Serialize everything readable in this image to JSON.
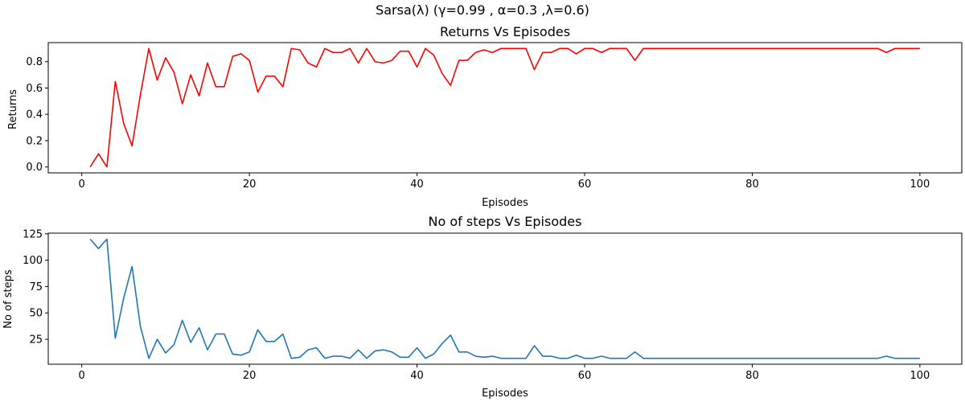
{
  "suptitle": "Sarsa(λ) (γ=0.99 , α=0.3 ,λ=0.6)",
  "colors": {
    "returns_line": "#ff0000",
    "steps_line": "#1f77b4"
  },
  "chart_data": [
    {
      "type": "line",
      "title": "Returns Vs Episodes",
      "xlabel": "Episodes",
      "ylabel": "Returns",
      "xlim": [
        -4,
        105
      ],
      "ylim": [
        -0.045,
        0.945
      ],
      "xticks": [
        0,
        20,
        40,
        60,
        80,
        100
      ],
      "yticks": [
        0.0,
        0.2,
        0.4,
        0.6,
        0.8
      ],
      "xtick_labels": [
        "0",
        "20",
        "40",
        "60",
        "80",
        "100"
      ],
      "ytick_labels": [
        "0.0",
        "0.2",
        "0.4",
        "0.6",
        "0.8"
      ],
      "grid": false,
      "series": [
        {
          "color": "#ff0000",
          "x": [
            1,
            2,
            3,
            4,
            5,
            6,
            7,
            8,
            9,
            10,
            11,
            12,
            13,
            14,
            15,
            16,
            17,
            18,
            19,
            20,
            21,
            22,
            23,
            24,
            25,
            26,
            27,
            28,
            29,
            30,
            31,
            32,
            33,
            34,
            35,
            36,
            37,
            38,
            39,
            40,
            41,
            42,
            43,
            44,
            45,
            46,
            47,
            48,
            49,
            50,
            51,
            52,
            53,
            54,
            55,
            56,
            57,
            58,
            59,
            60,
            61,
            62,
            63,
            64,
            65,
            66,
            67,
            68,
            69,
            70,
            71,
            72,
            73,
            74,
            75,
            76,
            77,
            78,
            79,
            80,
            81,
            82,
            83,
            84,
            85,
            86,
            87,
            88,
            89,
            90,
            91,
            92,
            93,
            94,
            95,
            96,
            97,
            98,
            99,
            100
          ],
          "values": [
            0.0,
            0.1,
            0.0,
            0.65,
            0.33,
            0.16,
            0.55,
            0.9,
            0.66,
            0.83,
            0.72,
            0.48,
            0.7,
            0.54,
            0.79,
            0.61,
            0.61,
            0.84,
            0.86,
            0.81,
            0.57,
            0.69,
            0.69,
            0.61,
            0.9,
            0.89,
            0.79,
            0.76,
            0.9,
            0.87,
            0.87,
            0.9,
            0.79,
            0.9,
            0.8,
            0.79,
            0.81,
            0.88,
            0.88,
            0.76,
            0.9,
            0.85,
            0.71,
            0.62,
            0.81,
            0.81,
            0.87,
            0.89,
            0.87,
            0.9,
            0.9,
            0.9,
            0.9,
            0.74,
            0.87,
            0.87,
            0.9,
            0.9,
            0.86,
            0.9,
            0.9,
            0.87,
            0.9,
            0.9,
            0.9,
            0.81,
            0.9,
            0.9,
            0.9,
            0.9,
            0.9,
            0.9,
            0.9,
            0.9,
            0.9,
            0.9,
            0.9,
            0.9,
            0.9,
            0.9,
            0.9,
            0.9,
            0.9,
            0.9,
            0.9,
            0.9,
            0.9,
            0.9,
            0.9,
            0.9,
            0.9,
            0.9,
            0.9,
            0.9,
            0.9,
            0.87,
            0.9,
            0.9,
            0.9,
            0.9
          ]
        }
      ]
    },
    {
      "type": "line",
      "title": "No of steps Vs Episodes",
      "xlabel": "Episodes",
      "ylabel": "No of steps",
      "xlim": [
        -4,
        105
      ],
      "ylim": [
        1.4,
        125.6
      ],
      "xticks": [
        0,
        20,
        40,
        60,
        80,
        100
      ],
      "yticks": [
        25,
        50,
        75,
        100,
        125
      ],
      "xtick_labels": [
        "0",
        "20",
        "40",
        "60",
        "80",
        "100"
      ],
      "ytick_labels": [
        "25",
        "50",
        "75",
        "100",
        "125"
      ],
      "grid": false,
      "series": [
        {
          "color": "#1f77b4",
          "x": [
            1,
            2,
            3,
            4,
            5,
            6,
            7,
            8,
            9,
            10,
            11,
            12,
            13,
            14,
            15,
            16,
            17,
            18,
            19,
            20,
            21,
            22,
            23,
            24,
            25,
            26,
            27,
            28,
            29,
            30,
            31,
            32,
            33,
            34,
            35,
            36,
            37,
            38,
            39,
            40,
            41,
            42,
            43,
            44,
            45,
            46,
            47,
            48,
            49,
            50,
            51,
            52,
            53,
            54,
            55,
            56,
            57,
            58,
            59,
            60,
            61,
            62,
            63,
            64,
            65,
            66,
            67,
            68,
            69,
            70,
            71,
            72,
            73,
            74,
            75,
            76,
            77,
            78,
            79,
            80,
            81,
            82,
            83,
            84,
            85,
            86,
            87,
            88,
            89,
            90,
            91,
            92,
            93,
            94,
            95,
            96,
            97,
            98,
            99,
            100
          ],
          "values": [
            120,
            111,
            120,
            26,
            64,
            94,
            37,
            7,
            25,
            12,
            20,
            43,
            22,
            36,
            15,
            30,
            30,
            11,
            10,
            13,
            34,
            23,
            23,
            30,
            7,
            8,
            15,
            17,
            7,
            9,
            9,
            7,
            15,
            7,
            14,
            15,
            13,
            8,
            8,
            17,
            7,
            11,
            21,
            29,
            13,
            13,
            9,
            8,
            9,
            7,
            7,
            7,
            7,
            19,
            9,
            9,
            7,
            7,
            10,
            7,
            7,
            9,
            7,
            7,
            7,
            13,
            7,
            7,
            7,
            7,
            7,
            7,
            7,
            7,
            7,
            7,
            7,
            7,
            7,
            7,
            7,
            7,
            7,
            7,
            7,
            7,
            7,
            7,
            7,
            7,
            7,
            7,
            7,
            7,
            7,
            9,
            7,
            7,
            7,
            7
          ]
        }
      ]
    }
  ]
}
